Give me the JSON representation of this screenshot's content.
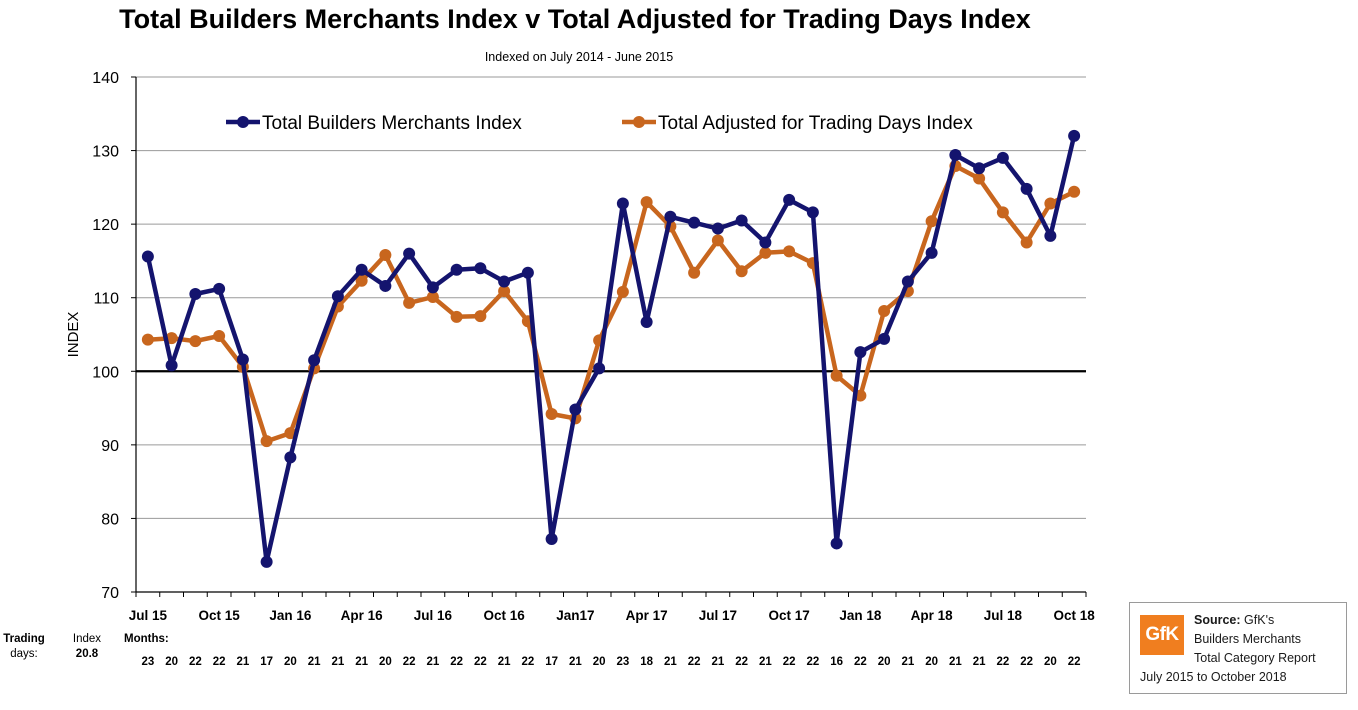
{
  "chart_data": {
    "type": "line",
    "title": "Total Builders Merchants Index v Total Adjusted for Trading Days Index",
    "subtitle": "Indexed on July 2014 - June 2015",
    "ylabel": "INDEX",
    "xlabel": "",
    "ylim": [
      70,
      140
    ],
    "yticks": [
      70,
      80,
      90,
      100,
      110,
      120,
      130,
      140
    ],
    "reference_line": 100,
    "x_tick_labels": [
      "Jul 15",
      "Oct 15",
      "Jan 16",
      "Apr 16",
      "Jul 16",
      "Oct 16",
      "Jan17",
      "Apr 17",
      "Jul 17",
      "Oct 17",
      "Jan 18",
      "Apr 18",
      "Jul 18",
      "Oct 18"
    ],
    "months": [
      "Jul 15",
      "Aug 15",
      "Sep 15",
      "Oct 15",
      "Nov 15",
      "Dec 15",
      "Jan 16",
      "Feb 16",
      "Mar 16",
      "Apr 16",
      "May 16",
      "Jun 16",
      "Jul 16",
      "Aug 16",
      "Sep 16",
      "Oct 16",
      "Nov 16",
      "Dec 16",
      "Jan 17",
      "Feb 17",
      "Mar 17",
      "Apr 17",
      "May 17",
      "Jun 17",
      "Jul 17",
      "Aug 17",
      "Sep 17",
      "Oct 17",
      "Nov 17",
      "Dec 17",
      "Jan 18",
      "Feb 18",
      "Mar 18",
      "Apr 18",
      "May 18",
      "Jun 18",
      "Jul 18",
      "Aug 18",
      "Sep 18",
      "Oct 18"
    ],
    "series": [
      {
        "name": "Total Builders Merchants Index",
        "color": "#14146e",
        "values": [
          115.6,
          100.8,
          110.5,
          111.2,
          101.6,
          74.1,
          88.3,
          101.5,
          110.2,
          113.8,
          111.6,
          116.0,
          111.4,
          113.8,
          114.0,
          112.2,
          113.4,
          77.2,
          94.8,
          100.4,
          122.8,
          106.7,
          121.0,
          120.2,
          119.4,
          120.5,
          117.5,
          123.3,
          121.6,
          76.6,
          102.6,
          104.4,
          112.2,
          116.1,
          129.4,
          127.6,
          129.0,
          124.8,
          118.4,
          132.0
        ]
      },
      {
        "name": "Total Adjusted for Trading Days Index",
        "color": "#c8661e",
        "values": [
          104.3,
          104.5,
          104.1,
          104.8,
          100.6,
          90.5,
          91.6,
          100.4,
          108.8,
          112.3,
          115.8,
          109.3,
          110.1,
          107.4,
          107.5,
          110.9,
          106.8,
          94.2,
          93.6,
          104.2,
          110.8,
          123.0,
          119.7,
          113.4,
          117.8,
          113.6,
          116.1,
          116.3,
          114.7,
          99.4,
          96.7,
          108.2,
          110.9,
          120.4,
          127.9,
          126.2,
          121.6,
          117.5,
          122.8,
          124.4
        ]
      }
    ],
    "legend_placement": "top-center"
  },
  "trading_days": {
    "label_line1": "Trading",
    "label_line2": "days:",
    "index_line1": "Index",
    "index_line2": "20.8",
    "months_label": "Months:",
    "values": [
      "23",
      "20",
      "22",
      "22",
      "21",
      "17",
      "20",
      "21",
      "21",
      "21",
      "20",
      "22",
      "21",
      "22",
      "22",
      "21",
      "22",
      "17",
      "21",
      "20",
      "23",
      "18",
      "21",
      "22",
      "21",
      "22",
      "21",
      "22",
      "22",
      "16",
      "22",
      "20",
      "21",
      "20",
      "21",
      "21",
      "22",
      "22",
      "20",
      "22"
    ]
  },
  "source": {
    "logo_text": "GfK",
    "label": "Source:",
    "line1": "GfK's",
    "line2": "Builders Merchants",
    "line3": "Total Category Report",
    "line4": "July 2015 to October 2018",
    "logo_color": "#f07e1f"
  }
}
